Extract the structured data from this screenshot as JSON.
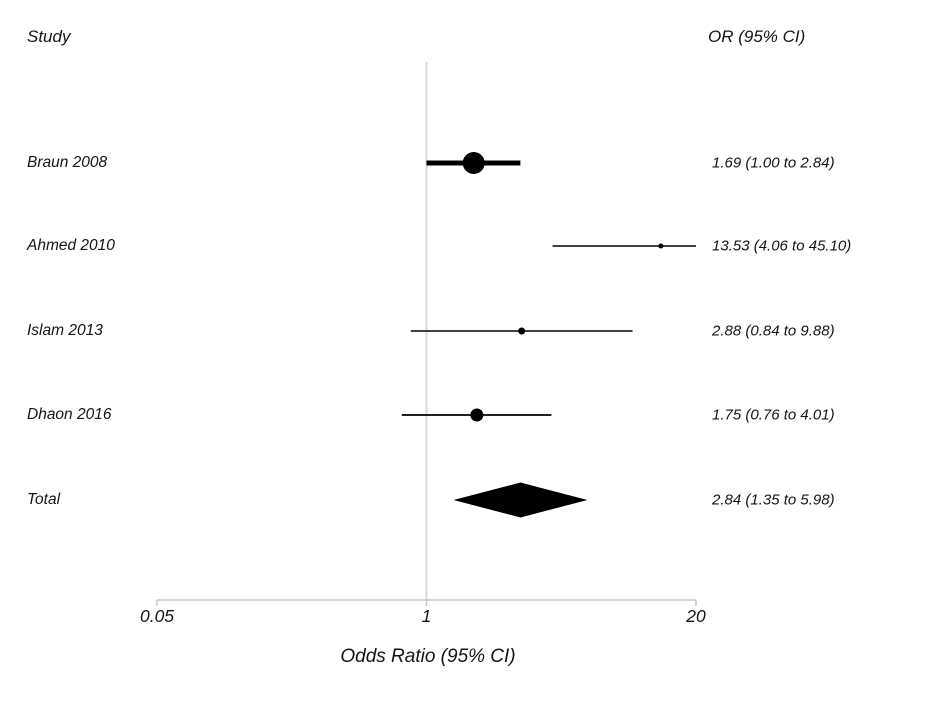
{
  "chart_data": {
    "type": "forest",
    "column_header_left": "Study",
    "column_header_right": "OR (95% CI)",
    "xlabel": "Odds Ratio (95% CI)",
    "x_scale": "log",
    "xlim": [
      0.05,
      20
    ],
    "x_ticks": [
      {
        "value": 0.05,
        "label": "0.05"
      },
      {
        "value": 1,
        "label": "1"
      },
      {
        "value": 20,
        "label": "20"
      }
    ],
    "reference_line_value": 1,
    "rows": [
      {
        "study": "Braun 2008",
        "or": 1.69,
        "ci_low": 1.0,
        "ci_high": 2.84,
        "or_text": "1.69 (1.00 to 2.84)",
        "marker_radius": 11,
        "line_width": 5
      },
      {
        "study": "Ahmed 2010",
        "or": 13.53,
        "ci_low": 4.06,
        "ci_high": 45.1,
        "or_text": "13.53 (4.06 to 45.10)",
        "marker_radius": 2.5,
        "line_width": 1.4
      },
      {
        "study": "Islam 2013",
        "or": 2.88,
        "ci_low": 0.84,
        "ci_high": 9.88,
        "or_text": "2.88 (0.84 to 9.88)",
        "marker_radius": 3.5,
        "line_width": 1.4
      },
      {
        "study": "Dhaon 2016",
        "or": 1.75,
        "ci_low": 0.76,
        "ci_high": 4.01,
        "or_text": "1.75 (0.76 to 4.01)",
        "marker_radius": 6.5,
        "line_width": 1.8
      }
    ],
    "total": {
      "study": "Total",
      "or": 2.84,
      "ci_low": 1.35,
      "ci_high": 5.98,
      "or_text": "2.84 (1.35 to 5.98)"
    }
  },
  "colors": {
    "text": "#141414",
    "marker": "#000000",
    "axis_line": "#c6c6c6",
    "reference_line": "#d8d8d8"
  }
}
